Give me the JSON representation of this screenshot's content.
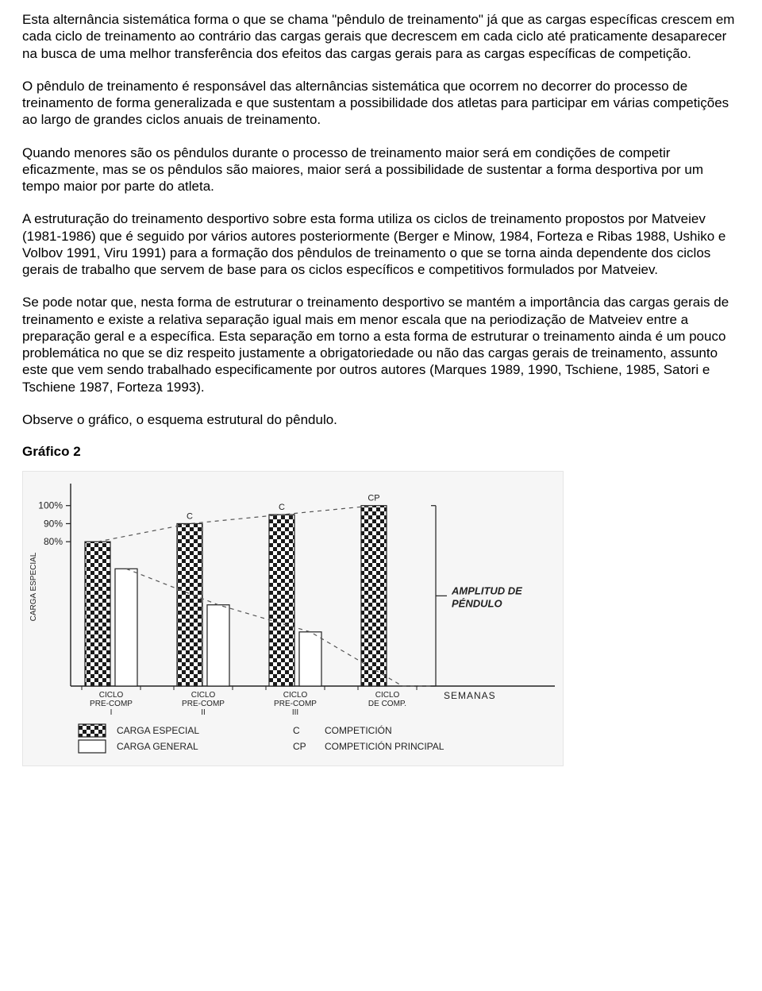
{
  "paragraphs": {
    "p1": "Esta alternância sistemática forma o que se chama \"pêndulo de treinamento\" já que as cargas específicas crescem em cada ciclo de treinamento ao contrário das cargas gerais que decrescem em cada ciclo até praticamente desaparecer na busca de uma melhor transferência dos efeitos das cargas gerais para as cargas específicas de competição.",
    "p2": "O pêndulo de treinamento é responsável das alternâncias sistemática que ocorrem no decorrer do processo de treinamento de forma generalizada e que sustentam a possibilidade dos atletas para participar em várias competições ao largo de grandes ciclos anuais de treinamento.",
    "p3": "Quando menores são os pêndulos durante o processo de treinamento maior será em condições de competir eficazmente, mas se os pêndulos são maiores, maior será a possibilidade de sustentar a forma desportiva por um tempo maior por parte do atleta.",
    "p4": "A estruturação do treinamento desportivo sobre esta forma utiliza os ciclos de treinamento propostos por Matveiev (1981-1986) que é seguido por vários autores posteriormente (Berger e Minow, 1984, Forteza e Ribas 1988, Ushiko e Volbov 1991, Viru 1991) para a formação dos pêndulos de treinamento o que se torna ainda dependente dos ciclos gerais de trabalho que servem de base para os ciclos específicos e competitivos formulados por Matveiev.",
    "p5": "Se pode notar que, nesta forma de estruturar o treinamento desportivo se mantém a importância das cargas gerais de treinamento e existe a relativa separação igual mais em menor escala que na periodização de Matveiev entre a preparação geral e a específica. Esta separação em torno a esta forma de estruturar o treinamento ainda é um pouco problemática no que se diz respeito justamente a obrigatoriedade ou não das cargas gerais de treinamento, assunto este que vem sendo trabalhado especificamente por outros autores (Marques 1989, 1990, Tschiene, 1985, Satori e Tschiene 1987, Forteza 1993).",
    "p6": "Observe o gráfico, o esquema estrutural do pêndulo.",
    "heading": "Gráfico 2"
  },
  "chart": {
    "type": "bar",
    "background_color": "#f6f6f6",
    "axis_color": "#222222",
    "outline_color": "#222222",
    "dash_color": "#555555",
    "text_color": "#222222",
    "checker_dark": "#1a1a1a",
    "checker_light": "#ffffff",
    "general_fill": "#ffffff",
    "y_axis_label": "CARGA ESPECIAL",
    "y_ticks": [
      {
        "value": 80,
        "label": "80%"
      },
      {
        "value": 90,
        "label": "90%"
      },
      {
        "value": 100,
        "label": "100%"
      }
    ],
    "y_range": [
      0,
      110
    ],
    "cycles": [
      {
        "especial": 80,
        "general": 65,
        "label_lines": [
          "CICLO",
          "PRE-COMP",
          "I"
        ],
        "top_label": ""
      },
      {
        "especial": 90,
        "general": 45,
        "label_lines": [
          "CICLO",
          "PRE-COMP",
          "II"
        ],
        "top_label": "C"
      },
      {
        "especial": 95,
        "general": 30,
        "label_lines": [
          "CICLO",
          "PRE-COMP",
          "III"
        ],
        "top_label": "C"
      },
      {
        "especial": 100,
        "general": 0,
        "label_lines": [
          "CICLO",
          "DE COMP."
        ],
        "top_label": "CP"
      }
    ],
    "bar_width_especial": 32,
    "bar_width_general": 28,
    "cycle_gap": 116,
    "first_x": 78,
    "pair_gap": 6,
    "annotation": {
      "line1": "AMPLITUD DE",
      "line2": "PÉNDULO"
    },
    "x_right_label": "SEMANAS",
    "legend": [
      {
        "swatch": "checker",
        "label": "CARGA ESPECIAL"
      },
      {
        "swatch": "hollow",
        "label": "CARGA GENERAL"
      }
    ],
    "legend_right": [
      {
        "code": "C",
        "label": "COMPETICIÓN"
      },
      {
        "code": "CP",
        "label": "COMPETICIÓN PRINCIPAL"
      }
    ],
    "font_sizes": {
      "tick": 12,
      "axis_small": 10,
      "label_small": 10,
      "legend": 12,
      "annotation": 13
    }
  }
}
